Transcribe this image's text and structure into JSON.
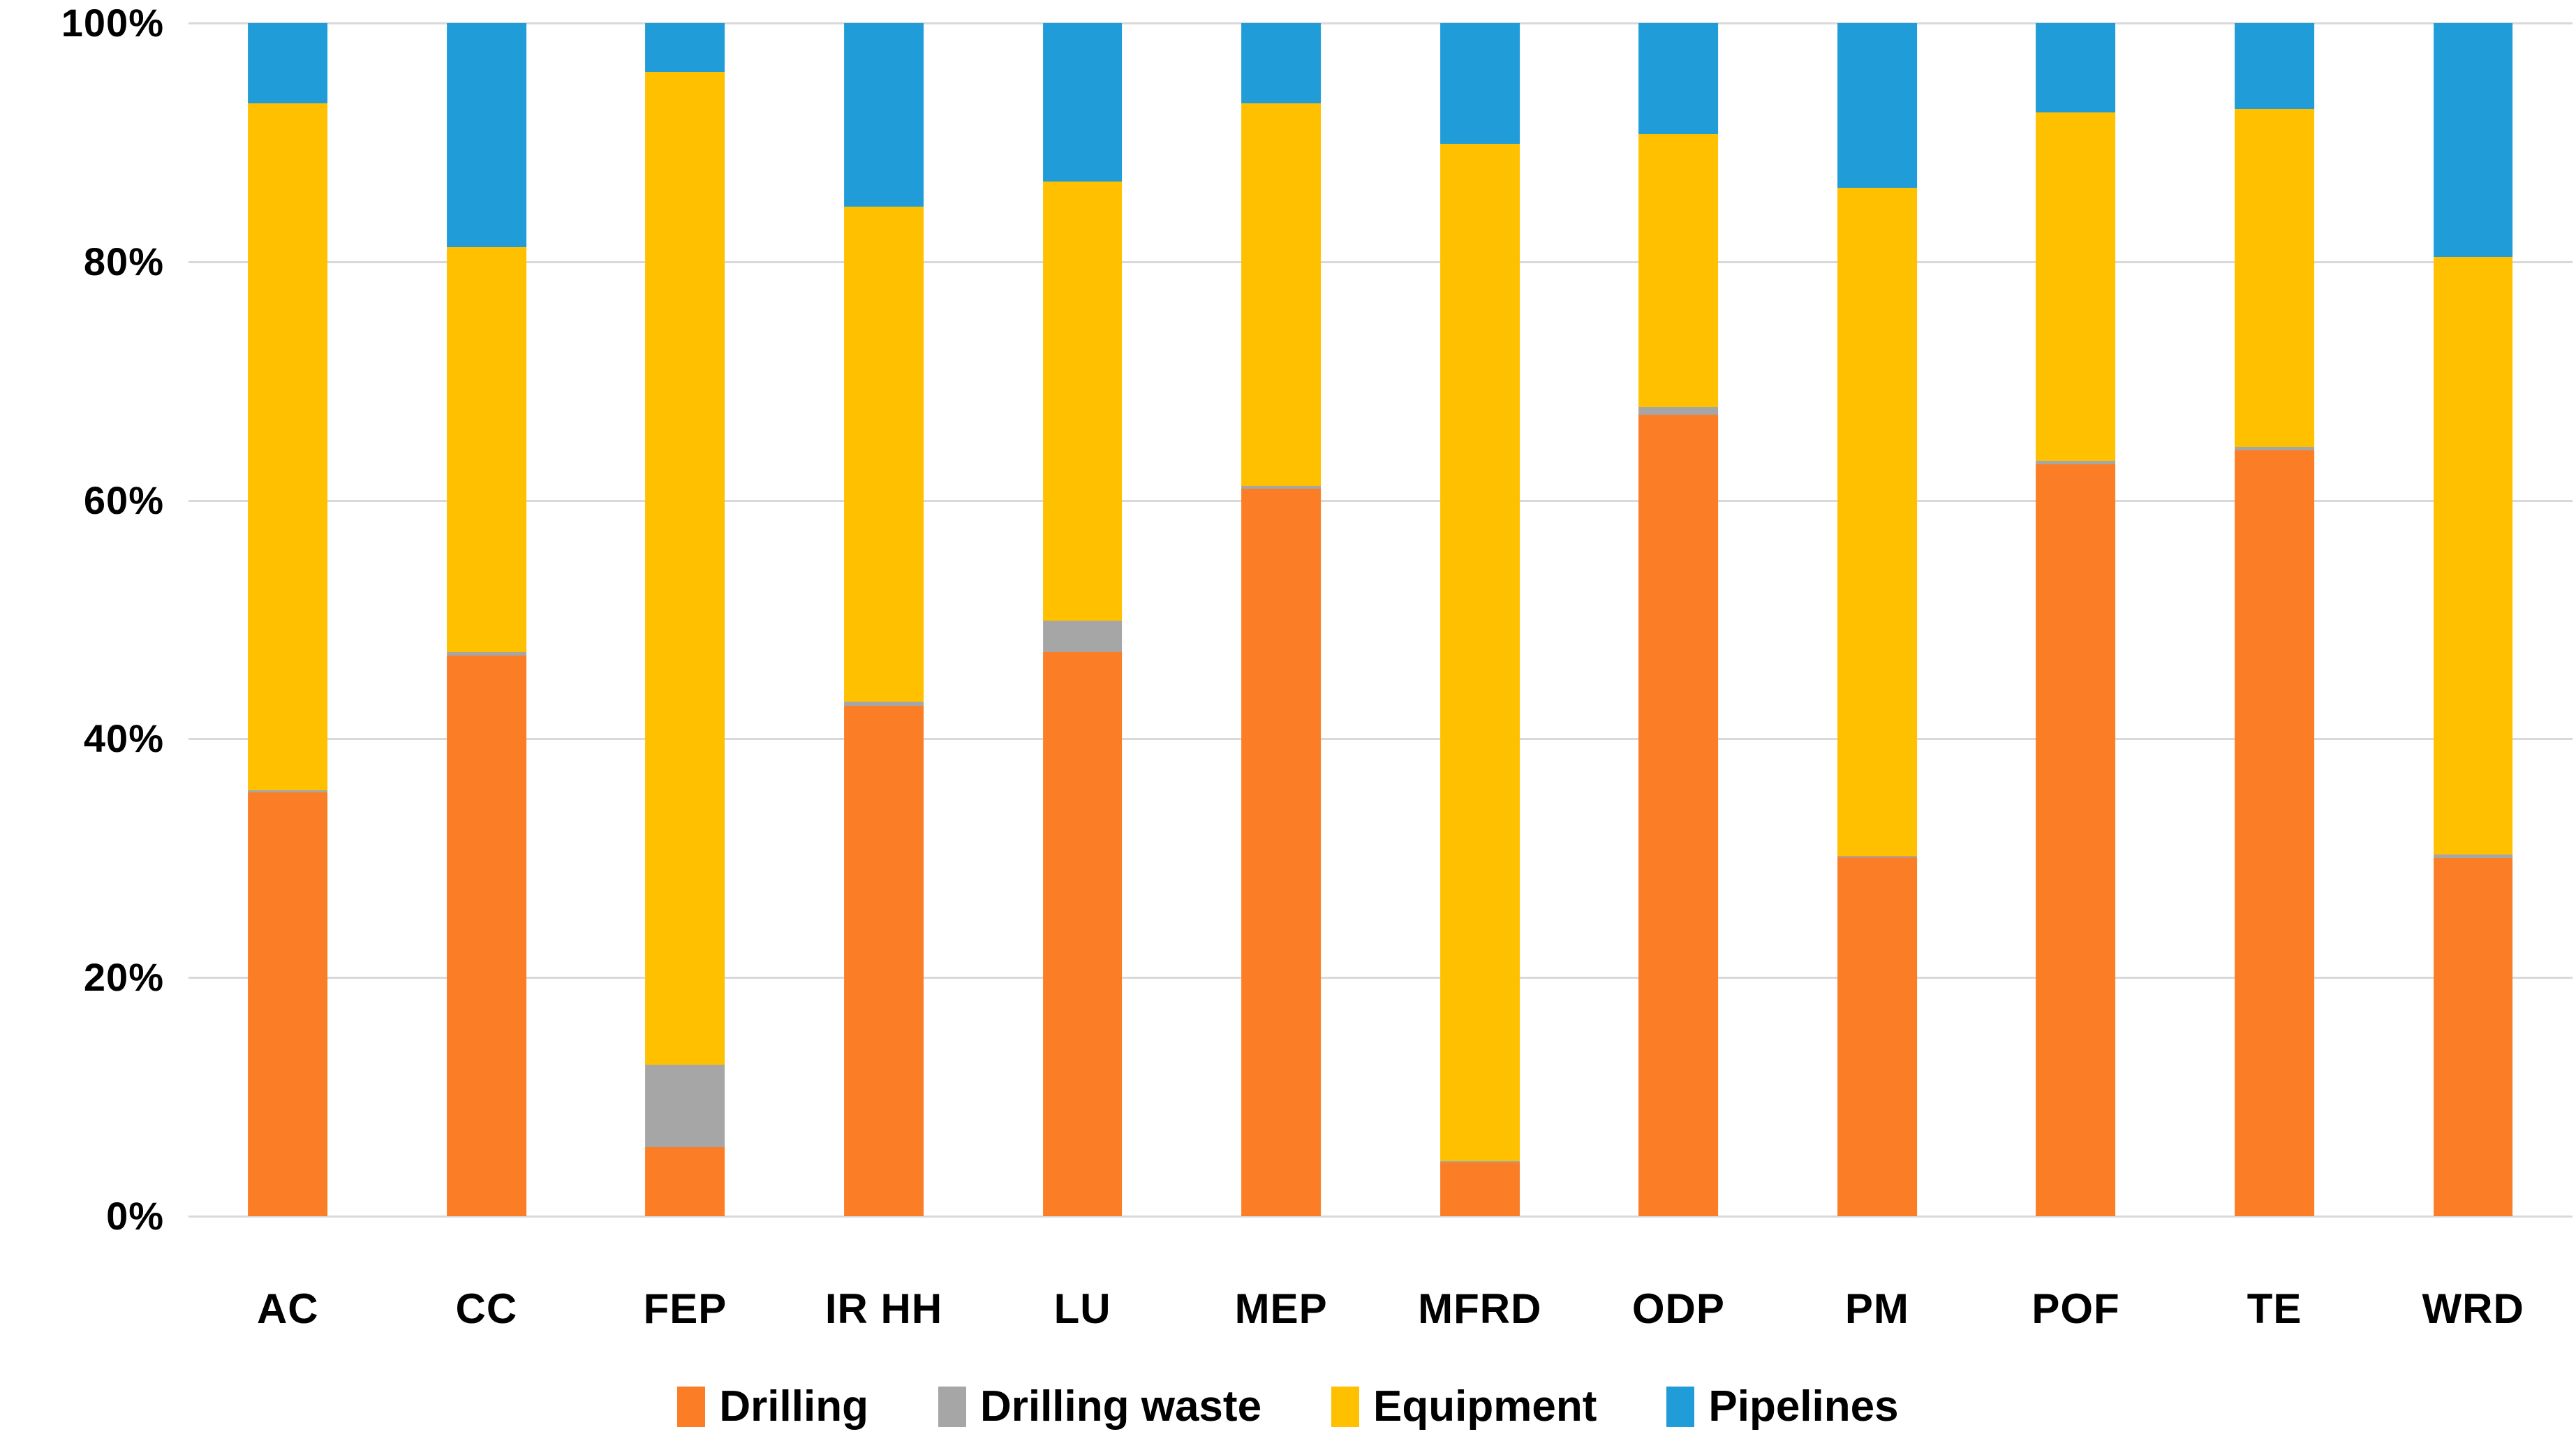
{
  "chart_data": {
    "type": "bar",
    "stacked": true,
    "percent": true,
    "title": "",
    "xlabel": "",
    "ylabel": "",
    "ylim": [
      0,
      100
    ],
    "y_tick_step": 20,
    "y_ticks": [
      "0%",
      "20%",
      "40%",
      "60%",
      "80%",
      "100%"
    ],
    "grid": true,
    "gridline_color": "#D9D9D9",
    "legend_position": "bottom",
    "categories": [
      "AC",
      "CC",
      "FEP",
      "IR HH",
      "LU",
      "MEP",
      "MFRD",
      "ODP",
      "PM",
      "POF",
      "TE",
      "WRD"
    ],
    "series": [
      {
        "name": "Drilling",
        "color": "#FB7E27",
        "values": [
          35.5,
          47.0,
          5.8,
          42.8,
          47.3,
          61.0,
          4.5,
          67.2,
          30.1,
          63.0,
          64.2,
          30.0
        ]
      },
      {
        "name": "Drilling waste",
        "color": "#A6A6A6",
        "values": [
          0.2,
          0.3,
          6.9,
          0.3,
          2.6,
          0.2,
          0.1,
          0.6,
          0.1,
          0.3,
          0.3,
          0.3
        ]
      },
      {
        "name": "Equipment",
        "color": "#FFC000",
        "values": [
          57.6,
          33.9,
          83.2,
          41.5,
          36.8,
          32.1,
          85.3,
          22.9,
          56.0,
          29.2,
          28.3,
          50.1
        ]
      },
      {
        "name": "Pipelines",
        "color": "#209DD9",
        "values": [
          6.7,
          18.8,
          4.1,
          15.4,
          13.3,
          6.7,
          10.1,
          9.3,
          13.8,
          7.5,
          7.2,
          19.6
        ]
      }
    ]
  }
}
